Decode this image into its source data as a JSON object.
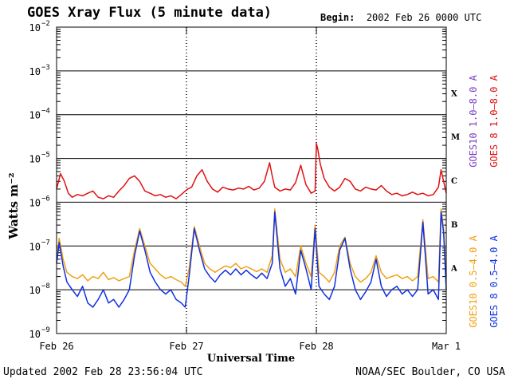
{
  "header": {
    "title": "GOES Xray Flux (5 minute data)",
    "begin_label": "Begin:",
    "begin_value": "2002 Feb 26 0000 UTC"
  },
  "footer": {
    "updated": "Updated 2002 Feb 28 23:56:04 UTC",
    "credit": "NOAA/SEC Boulder, CO USA"
  },
  "colors": {
    "goes10_long": "#7b3fbf",
    "goes8_long": "#e01010",
    "goes10_short": "#f0a010",
    "goes8_short": "#1030e0"
  },
  "chart_data": {
    "type": "line",
    "title": "GOES Xray Flux (5 minute data)",
    "xlabel": "Universal Time",
    "ylabel": "Watts m⁻²",
    "y_scale": "log",
    "ylim": [
      1e-09,
      0.01
    ],
    "y_ticks": [
      {
        "mantissa": "10",
        "exp": "−2"
      },
      {
        "mantissa": "10",
        "exp": "−3"
      },
      {
        "mantissa": "10",
        "exp": "−4"
      },
      {
        "mantissa": "10",
        "exp": "−5"
      },
      {
        "mantissa": "10",
        "exp": "−6"
      },
      {
        "mantissa": "10",
        "exp": "−7"
      },
      {
        "mantissa": "10",
        "exp": "−8"
      },
      {
        "mantissa": "10",
        "exp": "−9"
      }
    ],
    "x_ticks": [
      "Feb 26",
      "Feb 27",
      "Feb 28",
      "Mar 1"
    ],
    "xlim_days": [
      0,
      3
    ],
    "flare_classes": [
      "X",
      "M",
      "C",
      "B",
      "A"
    ],
    "legend_right": [
      {
        "text": "GOES10 1.0–8.0 A",
        "color": "#7b3fbf"
      },
      {
        "text": "GOES 8 1.0–8.0 A",
        "color": "#e01010"
      },
      {
        "text": "GOES10 0.5–4.0 A",
        "color": "#f0a010"
      },
      {
        "text": "GOES 8 0.5–4.0 A",
        "color": "#1030e0"
      }
    ],
    "series": [
      {
        "name": "GOES 8 1.0–8.0 A",
        "color": "#e01010",
        "x": [
          0.0,
          0.03,
          0.06,
          0.09,
          0.12,
          0.16,
          0.2,
          0.24,
          0.28,
          0.32,
          0.36,
          0.4,
          0.44,
          0.48,
          0.52,
          0.56,
          0.6,
          0.64,
          0.68,
          0.72,
          0.76,
          0.8,
          0.84,
          0.88,
          0.92,
          0.96,
          0.99,
          1.01,
          1.04,
          1.08,
          1.12,
          1.16,
          1.2,
          1.24,
          1.28,
          1.32,
          1.36,
          1.4,
          1.44,
          1.48,
          1.52,
          1.56,
          1.6,
          1.64,
          1.66,
          1.68,
          1.72,
          1.76,
          1.8,
          1.84,
          1.88,
          1.92,
          1.96,
          1.99,
          2.0,
          2.01,
          2.03,
          2.06,
          2.1,
          2.14,
          2.18,
          2.22,
          2.26,
          2.3,
          2.34,
          2.38,
          2.42,
          2.46,
          2.5,
          2.54,
          2.58,
          2.62,
          2.66,
          2.7,
          2.74,
          2.78,
          2.82,
          2.86,
          2.9,
          2.94,
          2.96,
          2.98,
          3.0
        ],
        "y": [
          2e-06,
          4.5e-06,
          3e-06,
          1.6e-06,
          1.3e-06,
          1.5e-06,
          1.4e-06,
          1.6e-06,
          1.8e-06,
          1.3e-06,
          1.2e-06,
          1.4e-06,
          1.3e-06,
          1.8e-06,
          2.4e-06,
          3.5e-06,
          4e-06,
          3e-06,
          1.8e-06,
          1.6e-06,
          1.4e-06,
          1.5e-06,
          1.3e-06,
          1.4e-06,
          1.2e-06,
          1.5e-06,
          1.8e-06,
          2e-06,
          2.2e-06,
          4e-06,
          5.5e-06,
          3e-06,
          2e-06,
          1.7e-06,
          2.2e-06,
          2e-06,
          1.9e-06,
          2.1e-06,
          2e-06,
          2.3e-06,
          1.9e-06,
          2.1e-06,
          3e-06,
          8e-06,
          4e-06,
          2.2e-06,
          1.8e-06,
          2e-06,
          1.9e-06,
          2.8e-06,
          7e-06,
          2.5e-06,
          1.6e-06,
          1.8e-06,
          2.2e-05,
          1.7e-05,
          7.5e-06,
          3.5e-06,
          2.2e-06,
          1.8e-06,
          2.2e-06,
          3.5e-06,
          3e-06,
          2e-06,
          1.8e-06,
          2.2e-06,
          2e-06,
          1.9e-06,
          2.4e-06,
          1.8e-06,
          1.5e-06,
          1.6e-06,
          1.4e-06,
          1.5e-06,
          1.7e-06,
          1.5e-06,
          1.6e-06,
          1.4e-06,
          1.5e-06,
          2.2e-06,
          5.5e-06,
          3e-06,
          1.6e-06
        ]
      },
      {
        "name": "GOES10 0.5–4.0 A",
        "color": "#f0a010",
        "x": [
          0.0,
          0.02,
          0.05,
          0.08,
          0.12,
          0.16,
          0.2,
          0.24,
          0.28,
          0.32,
          0.36,
          0.4,
          0.44,
          0.48,
          0.52,
          0.56,
          0.6,
          0.64,
          0.68,
          0.72,
          0.76,
          0.8,
          0.84,
          0.88,
          0.92,
          0.96,
          0.99,
          1.02,
          1.06,
          1.1,
          1.14,
          1.18,
          1.22,
          1.26,
          1.3,
          1.34,
          1.38,
          1.42,
          1.46,
          1.5,
          1.54,
          1.58,
          1.62,
          1.66,
          1.68,
          1.72,
          1.76,
          1.8,
          1.84,
          1.88,
          1.92,
          1.96,
          1.99,
          2.02,
          2.06,
          2.1,
          2.14,
          2.18,
          2.22,
          2.26,
          2.3,
          2.34,
          2.38,
          2.42,
          2.46,
          2.5,
          2.54,
          2.58,
          2.62,
          2.66,
          2.7,
          2.74,
          2.78,
          2.82,
          2.86,
          2.9,
          2.94,
          2.96,
          2.98,
          3.0
        ],
        "y": [
          5e-08,
          1.5e-07,
          5e-08,
          2.5e-08,
          2e-08,
          1.8e-08,
          2.2e-08,
          1.6e-08,
          2e-08,
          1.8e-08,
          2.5e-08,
          1.7e-08,
          1.9e-08,
          1.6e-08,
          1.8e-08,
          2e-08,
          8e-08,
          2.5e-07,
          1e-07,
          4e-08,
          3e-08,
          2.2e-08,
          1.8e-08,
          2e-08,
          1.7e-08,
          1.5e-08,
          1.2e-08,
          3e-08,
          2.8e-07,
          1e-07,
          4e-08,
          3e-08,
          2.5e-08,
          3e-08,
          3.5e-08,
          3.2e-08,
          4e-08,
          3e-08,
          3.4e-08,
          3e-08,
          2.6e-08,
          3e-08,
          2.5e-08,
          6e-08,
          7e-07,
          5e-08,
          2.5e-08,
          3e-08,
          2e-08,
          1e-07,
          4e-08,
          2e-08,
          3e-07,
          2.5e-08,
          2e-08,
          1.5e-08,
          2.5e-08,
          1e-07,
          1.6e-07,
          4e-08,
          2e-08,
          1.5e-08,
          1.8e-08,
          2.5e-08,
          6e-08,
          2.5e-08,
          1.8e-08,
          2e-08,
          2.2e-08,
          1.8e-08,
          2e-08,
          1.6e-08,
          2e-08,
          4e-07,
          1.8e-08,
          2e-08,
          1.5e-08,
          7e-07,
          2.5e-07,
          2e-08
        ]
      },
      {
        "name": "GOES 8 0.5–4.0 A",
        "color": "#1030e0",
        "x": [
          0.0,
          0.02,
          0.05,
          0.08,
          0.12,
          0.16,
          0.2,
          0.24,
          0.28,
          0.32,
          0.36,
          0.4,
          0.44,
          0.48,
          0.52,
          0.56,
          0.6,
          0.64,
          0.68,
          0.72,
          0.76,
          0.8,
          0.84,
          0.88,
          0.92,
          0.96,
          0.99,
          1.02,
          1.06,
          1.1,
          1.14,
          1.18,
          1.22,
          1.26,
          1.3,
          1.34,
          1.38,
          1.42,
          1.46,
          1.5,
          1.54,
          1.58,
          1.62,
          1.66,
          1.68,
          1.72,
          1.76,
          1.8,
          1.84,
          1.88,
          1.92,
          1.96,
          1.99,
          2.02,
          2.06,
          2.1,
          2.14,
          2.18,
          2.22,
          2.26,
          2.3,
          2.34,
          2.38,
          2.42,
          2.46,
          2.5,
          2.54,
          2.58,
          2.62,
          2.66,
          2.7,
          2.74,
          2.78,
          2.82,
          2.86,
          2.9,
          2.94,
          2.96,
          2.98,
          3.0
        ],
        "y": [
          4e-08,
          1.2e-07,
          3.5e-08,
          1.5e-08,
          1e-08,
          7e-09,
          1.2e-08,
          5e-09,
          4e-09,
          6e-09,
          1e-08,
          5e-09,
          6e-09,
          4e-09,
          6e-09,
          1e-08,
          6e-08,
          2.2e-07,
          8e-08,
          2.5e-08,
          1.5e-08,
          1e-08,
          8e-09,
          1e-08,
          6e-09,
          5e-09,
          4e-09,
          2e-08,
          2.5e-07,
          8e-08,
          3e-08,
          2e-08,
          1.5e-08,
          2.2e-08,
          2.8e-08,
          2.2e-08,
          3e-08,
          2.2e-08,
          2.8e-08,
          2.2e-08,
          1.8e-08,
          2.4e-08,
          1.8e-08,
          4e-08,
          6e-07,
          3e-08,
          1.2e-08,
          1.8e-08,
          8e-09,
          8e-08,
          3e-08,
          1e-08,
          2.5e-07,
          1.2e-08,
          8e-09,
          6e-09,
          1.2e-08,
          8e-08,
          1.5e-07,
          3e-08,
          1e-08,
          6e-09,
          9e-09,
          1.5e-08,
          5e-08,
          1.2e-08,
          7e-09,
          1e-08,
          1.2e-08,
          8e-09,
          1e-08,
          7e-09,
          1e-08,
          3.5e-07,
          8e-09,
          1e-08,
          6e-09,
          6e-07,
          2e-07,
          1e-08
        ]
      }
    ]
  }
}
